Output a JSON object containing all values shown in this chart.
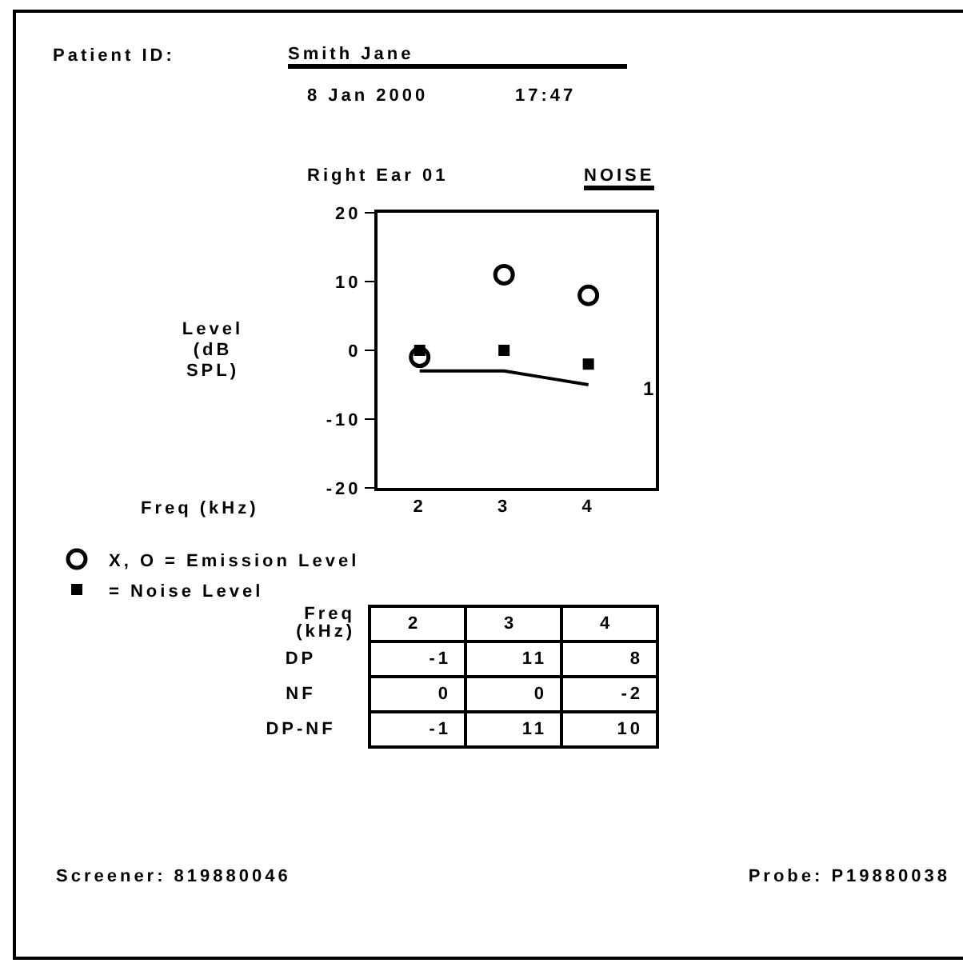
{
  "chart_data": [
    {
      "type": "scatter",
      "title": "Right Ear 01",
      "xlabel": "Freq (kHz)",
      "ylabel": "Level (dB SPL)",
      "x": [
        2,
        3,
        4
      ],
      "xlim": [
        1.5,
        4.8
      ],
      "xticks": [
        2,
        3,
        4
      ],
      "ylim": [
        -20,
        20
      ],
      "yticks": [
        -20,
        -10,
        0,
        10,
        20
      ],
      "grid": false,
      "legend": "bottom",
      "series": [
        {
          "name": "X, O = Emission Level",
          "color": "#000000",
          "marker": "circle",
          "values": [
            -1,
            11,
            8
          ]
        },
        {
          "name": "= Noise Level",
          "color": "#000000",
          "marker": "square",
          "values": [
            0,
            0,
            -2
          ]
        },
        {
          "type": "line",
          "color": "#000000",
          "marker": "none",
          "x": [
            2,
            2.5,
            3,
            3.5,
            4
          ],
          "values": [
            -3,
            -3,
            -3,
            -4,
            -5
          ]
        }
      ],
      "annotations": [
        "Patient ID:",
        "Smith Jane",
        "8 Jan 2000",
        "17:47",
        "NOISE",
        "Screener: 819880046",
        "Probe: P19880038",
        "1"
      ]
    },
    {
      "type": "other",
      "xlabel": "Freq (kHz)",
      "categories": [
        "2",
        "3",
        "4"
      ],
      "data_labels": true,
      "series": [
        {
          "name": "DP",
          "values": [
            -1,
            11,
            8
          ]
        },
        {
          "name": "NF",
          "values": [
            0,
            0,
            -2
          ]
        },
        {
          "name": "DP-NF",
          "values": [
            -1,
            11,
            10
          ]
        }
      ]
    }
  ]
}
